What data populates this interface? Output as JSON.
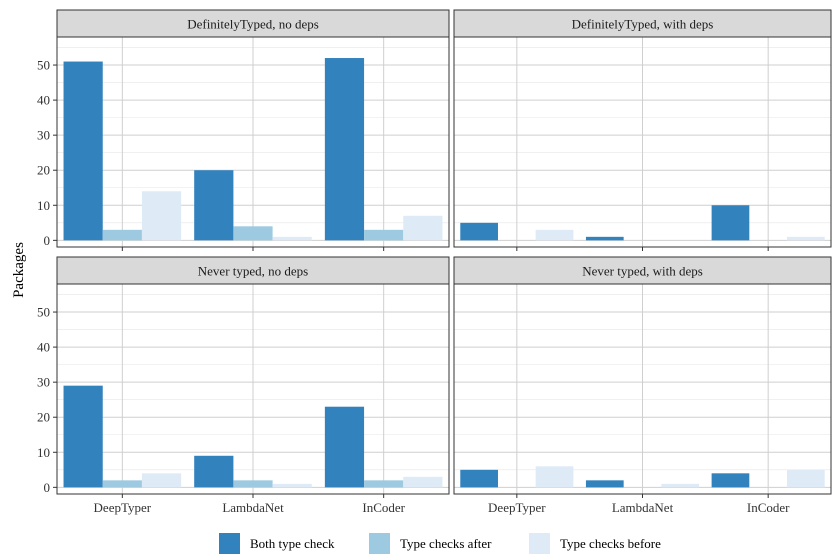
{
  "chart_data": {
    "type": "bar",
    "ylabel": "Packages",
    "xlabel": "",
    "categories": [
      "DeepTyper",
      "LambdaNet",
      "InCoder"
    ],
    "ylim": [
      0,
      55
    ],
    "yticks": [
      0,
      10,
      20,
      30,
      40,
      50
    ],
    "grid": true,
    "legend_position": "bottom",
    "series_names": [
      "Both type check",
      "Type checks after",
      "Type checks before"
    ],
    "series_colors": [
      "#3182bd",
      "#9ecae1",
      "#deebf7"
    ],
    "panels": [
      {
        "title": "DefinitelyTyped, no deps",
        "series": [
          {
            "name": "Both type check",
            "values": [
              51,
              20,
              52
            ]
          },
          {
            "name": "Type checks after",
            "values": [
              3,
              4,
              3
            ]
          },
          {
            "name": "Type checks before",
            "values": [
              14,
              1,
              7
            ]
          }
        ]
      },
      {
        "title": "DefinitelyTyped, with deps",
        "series": [
          {
            "name": "Both type check",
            "values": [
              5,
              1,
              10
            ]
          },
          {
            "name": "Type checks after",
            "values": [
              0,
              0,
              0
            ]
          },
          {
            "name": "Type checks before",
            "values": [
              3,
              0,
              1
            ]
          }
        ]
      },
      {
        "title": "Never typed, no deps",
        "series": [
          {
            "name": "Both type check",
            "values": [
              29,
              9,
              23
            ]
          },
          {
            "name": "Type checks after",
            "values": [
              2,
              2,
              2
            ]
          },
          {
            "name": "Type checks before",
            "values": [
              4,
              1,
              3
            ]
          }
        ]
      },
      {
        "title": "Never typed, with deps",
        "series": [
          {
            "name": "Both type check",
            "values": [
              5,
              2,
              4
            ]
          },
          {
            "name": "Type checks after",
            "values": [
              0,
              0,
              0
            ]
          },
          {
            "name": "Type checks before",
            "values": [
              6,
              1,
              5
            ]
          }
        ]
      }
    ]
  }
}
